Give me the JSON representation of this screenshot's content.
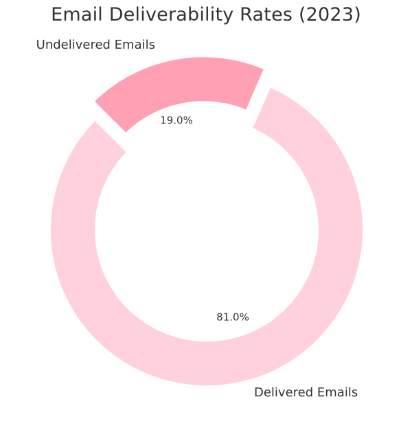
{
  "chart_data": {
    "type": "pie",
    "title": "Email Deliverability Rates (2023)",
    "categories": [
      "Delivered Emails",
      "Undelivered Emails"
    ],
    "values": [
      81.0,
      19.0
    ],
    "value_labels": [
      "81.0%",
      "19.0%"
    ],
    "colors": [
      "#ffd1dc",
      "#ffa0b4"
    ],
    "donut": true,
    "exploded": [
      false,
      true
    ],
    "start_angle_deg": 135,
    "direction": "counterclockwise",
    "legend": "none"
  }
}
